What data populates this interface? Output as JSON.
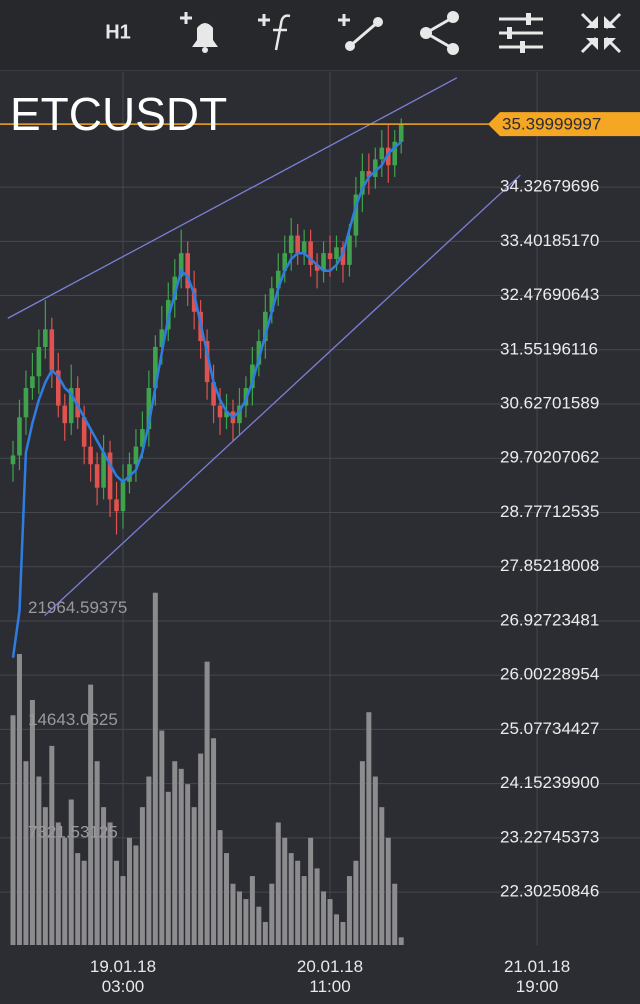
{
  "toolbar": {
    "timeframe": "H1"
  },
  "chart_data": {
    "type": "candlestick",
    "title": "ETCUSDT",
    "categories": [
      null,
      null,
      null,
      null,
      null,
      null,
      null,
      null,
      null,
      null,
      null,
      null,
      null,
      null,
      null,
      null,
      null,
      "19.01.18\n03:00",
      null,
      null,
      null,
      null,
      null,
      null,
      null,
      null,
      null,
      null,
      null,
      null,
      null,
      null,
      null,
      null,
      null,
      null,
      null,
      null,
      null,
      null,
      null,
      null,
      null,
      null,
      null,
      null,
      null,
      null,
      null,
      "20.01.18\n11:00",
      null,
      null,
      null,
      null,
      null,
      null,
      null,
      null,
      null,
      null,
      null,
      null,
      null,
      null,
      null,
      null,
      null,
      null,
      null,
      null,
      null,
      null,
      null,
      null,
      null,
      null,
      null,
      null,
      null,
      null,
      null,
      "21.01.18\n19:00"
    ],
    "open": [
      29.6,
      29.75,
      30.4,
      30.9,
      31.1,
      31.6,
      31.9,
      31.2,
      30.6,
      30.3,
      30.9,
      30.4,
      29.9,
      29.6,
      29.2,
      29.8,
      29.0,
      28.8,
      29.3,
      29.6,
      29.9,
      30.2,
      30.9,
      31.6,
      31.9,
      32.4,
      32.8,
      33.2,
      32.6,
      32.2,
      31.7,
      31.0,
      30.6,
      30.4,
      30.5,
      30.3,
      30.6,
      30.9,
      31.3,
      31.7,
      32.2,
      32.6,
      32.9,
      33.2,
      33.5,
      33.2,
      33.4,
      33.0,
      32.9,
      33.2,
      33.1,
      33.3,
      33.0,
      33.5,
      34.2,
      34.6,
      34.5,
      34.8,
      35.0,
      34.7,
      35.1,
      null,
      null,
      null,
      null,
      null,
      null,
      null,
      null,
      null,
      null,
      null,
      null,
      null,
      null,
      null,
      null,
      null,
      null,
      null,
      null,
      null
    ],
    "high": [
      30.0,
      30.7,
      31.2,
      31.5,
      31.9,
      32.4,
      32.1,
      31.5,
      30.8,
      31.3,
      31.1,
      30.6,
      30.2,
      29.8,
      30.1,
      30.0,
      29.3,
      29.6,
      29.8,
      30.2,
      30.5,
      31.2,
      31.8,
      32.3,
      32.7,
      33.1,
      33.6,
      33.4,
      32.9,
      32.4,
      31.9,
      31.3,
      30.9,
      30.8,
      30.7,
      30.9,
      31.1,
      31.6,
      31.9,
      32.5,
      32.8,
      33.2,
      33.5,
      33.8,
      33.7,
      33.6,
      33.6,
      33.2,
      33.4,
      33.5,
      33.5,
      33.4,
      33.7,
      34.5,
      34.9,
      34.9,
      35.0,
      35.3,
      35.4,
      35.3,
      35.5,
      null,
      null,
      null,
      null,
      null,
      null,
      null,
      null,
      null,
      null,
      null,
      null,
      null,
      null,
      null,
      null,
      null,
      null,
      null,
      null,
      null
    ],
    "low": [
      29.3,
      29.5,
      30.1,
      30.7,
      30.8,
      31.4,
      30.9,
      30.4,
      30.0,
      30.1,
      30.2,
      29.6,
      29.3,
      28.9,
      29.0,
      28.7,
      28.4,
      28.5,
      29.1,
      29.3,
      29.7,
      29.9,
      30.6,
      31.3,
      31.7,
      32.1,
      32.6,
      32.3,
      31.9,
      31.4,
      30.7,
      30.3,
      30.1,
      30.2,
      30.0,
      30.1,
      30.4,
      30.6,
      31.1,
      31.4,
      32.0,
      32.3,
      32.7,
      32.9,
      33.0,
      33.0,
      32.8,
      32.6,
      32.7,
      32.8,
      32.9,
      32.7,
      32.8,
      33.3,
      33.9,
      34.2,
      34.3,
      34.5,
      34.4,
      34.5,
      34.9,
      null,
      null,
      null,
      null,
      null,
      null,
      null,
      null,
      null,
      null,
      null,
      null,
      null,
      null,
      null,
      null,
      null,
      null,
      null,
      null,
      null
    ],
    "close": [
      29.75,
      30.4,
      30.9,
      31.1,
      31.6,
      31.9,
      31.2,
      30.6,
      30.3,
      30.9,
      30.4,
      29.9,
      29.6,
      29.2,
      29.8,
      29.0,
      28.8,
      29.3,
      29.6,
      29.9,
      30.2,
      30.9,
      31.6,
      31.9,
      32.4,
      32.8,
      33.2,
      32.6,
      32.2,
      31.7,
      31.0,
      30.6,
      30.4,
      30.5,
      30.3,
      30.6,
      30.9,
      31.3,
      31.7,
      32.2,
      32.6,
      32.9,
      33.2,
      33.5,
      33.2,
      33.4,
      33.0,
      32.9,
      33.2,
      33.1,
      33.3,
      33.0,
      33.5,
      34.2,
      34.6,
      34.5,
      34.8,
      35.0,
      34.7,
      35.1,
      35.4,
      null,
      null,
      null,
      null,
      null,
      null,
      null,
      null,
      null,
      null,
      null,
      null,
      null,
      null,
      null,
      null,
      null,
      null,
      null,
      null,
      null
    ],
    "volume": [
      15000,
      19000,
      12000,
      16000,
      11000,
      9000,
      13000,
      8000,
      7000,
      9500,
      6000,
      5500,
      17000,
      12000,
      9000,
      8000,
      5500,
      4500,
      7000,
      6500,
      9000,
      11000,
      23000,
      14000,
      10000,
      12000,
      11500,
      10500,
      9000,
      12500,
      18500,
      13500,
      7500,
      6000,
      4000,
      3500,
      3000,
      4500,
      2500,
      1500,
      4000,
      8000,
      7000,
      6000,
      5500,
      4500,
      7000,
      5000,
      3500,
      3000,
      2000,
      1500,
      4500,
      5500,
      12000,
      15200,
      11000,
      9000,
      7000,
      4000,
      500,
      null,
      null,
      null,
      null,
      null,
      null,
      null,
      null,
      null,
      null,
      null,
      null,
      null,
      null,
      null,
      null,
      null,
      null,
      null,
      null,
      null
    ],
    "ma": [
      26.3,
      27.1,
      29.8,
      30.3,
      30.7,
      31.0,
      31.2,
      31.1,
      30.9,
      30.8,
      30.6,
      30.4,
      30.2,
      30.0,
      29.8,
      29.6,
      29.4,
      29.3,
      29.4,
      29.5,
      29.8,
      30.3,
      30.9,
      31.5,
      32.1,
      32.5,
      32.9,
      32.8,
      32.5,
      32.0,
      31.5,
      31.0,
      30.7,
      30.5,
      30.4,
      30.5,
      30.7,
      31.0,
      31.4,
      31.8,
      32.2,
      32.6,
      32.9,
      33.1,
      33.2,
      33.2,
      33.1,
      33.0,
      32.9,
      32.9,
      33.0,
      33.2,
      33.6,
      34.0,
      34.3,
      34.5,
      34.6,
      34.7,
      34.9,
      35.0,
      35.1,
      null,
      null,
      null,
      null,
      null,
      null,
      null,
      null,
      null,
      null,
      null,
      null,
      null,
      null,
      null,
      null,
      null,
      null,
      null,
      null,
      null
    ],
    "up_color": "#3fa34d",
    "down_color": "#e0524f",
    "volume_color": "#8c8c8f",
    "ma_color": "#2f7de1",
    "ylim": [
      21.4,
      36.29
    ],
    "yticks": [
      22.30250846,
      23.22745373,
      {
        "value": 24.152399,
        "label": "24.15239900"
      },
      25.07734427,
      26.00228954,
      26.92723481,
      27.85218008,
      28.77712535,
      29.70207062,
      30.62701589,
      31.55196116,
      32.47690643,
      {
        "value": 33.4018517,
        "label": "33.40185170"
      },
      34.32679696
    ],
    "y2lim": [
      0,
      57000
    ],
    "y2ticks": [
      7321.53125,
      14643.0625,
      21964.59375
    ],
    "price_line": {
      "value": 35.39999997,
      "color": "#f5a623"
    },
    "trend_lines": [
      {
        "x": [
          -0.8,
          68.6
        ],
        "y": [
          32.09,
          36.19
        ]
      },
      {
        "x": [
          4.9,
          78.4
        ],
        "y": [
          27.02,
          34.53
        ]
      }
    ],
    "trend_color": "#7b80d6",
    "grid": true
  }
}
